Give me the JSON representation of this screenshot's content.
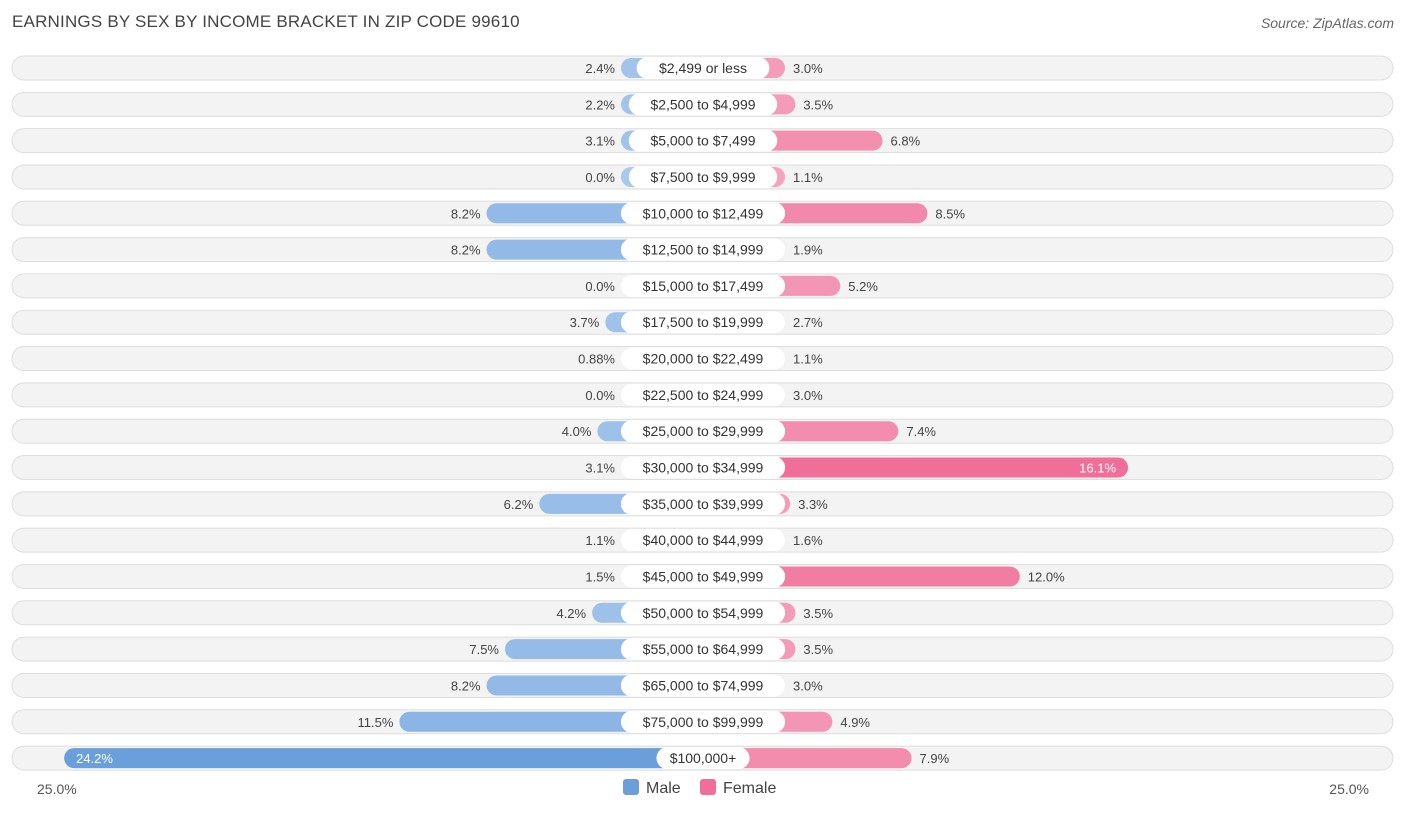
{
  "title": "EARNINGS BY SEX BY INCOME BRACKET IN ZIP CODE 99610",
  "source": "Source: ZipAtlas.com",
  "colors": {
    "male_light": "#a8c8ec",
    "male_dark": "#6a9fdb",
    "female_light": "#f5a8c2",
    "female_dark": "#f06e98"
  },
  "chart_data": {
    "type": "bar",
    "orientation": "horizontal-diverging",
    "categories": [
      "$2,499 or less",
      "$2,500 to $4,999",
      "$5,000 to $7,499",
      "$7,500 to $9,999",
      "$10,000 to $12,499",
      "$12,500 to $14,999",
      "$15,000 to $17,499",
      "$17,500 to $19,999",
      "$20,000 to $22,499",
      "$22,500 to $24,999",
      "$25,000 to $29,999",
      "$30,000 to $34,999",
      "$35,000 to $39,999",
      "$40,000 to $44,999",
      "$45,000 to $49,999",
      "$50,000 to $54,999",
      "$55,000 to $64,999",
      "$65,000 to $74,999",
      "$75,000 to $99,999",
      "$100,000+"
    ],
    "series": [
      {
        "name": "Male",
        "values": [
          2.4,
          2.2,
          3.1,
          0.0,
          8.2,
          8.2,
          0.0,
          3.7,
          0.88,
          0.0,
          4.0,
          3.1,
          6.2,
          1.1,
          1.5,
          4.2,
          7.5,
          8.2,
          11.5,
          24.2
        ],
        "labels": [
          "2.4%",
          "2.2%",
          "3.1%",
          "0.0%",
          "8.2%",
          "8.2%",
          "0.0%",
          "3.7%",
          "0.88%",
          "0.0%",
          "4.0%",
          "3.1%",
          "6.2%",
          "1.1%",
          "1.5%",
          "4.2%",
          "7.5%",
          "8.2%",
          "11.5%",
          "24.2%"
        ]
      },
      {
        "name": "Female",
        "values": [
          3.0,
          3.5,
          6.8,
          1.1,
          8.5,
          1.9,
          5.2,
          2.7,
          1.1,
          3.0,
          7.4,
          16.1,
          3.3,
          1.6,
          12.0,
          3.5,
          3.5,
          3.0,
          4.9,
          7.9
        ],
        "labels": [
          "3.0%",
          "3.5%",
          "6.8%",
          "1.1%",
          "8.5%",
          "1.9%",
          "5.2%",
          "2.7%",
          "1.1%",
          "3.0%",
          "7.4%",
          "16.1%",
          "3.3%",
          "1.6%",
          "12.0%",
          "3.5%",
          "3.5%",
          "3.0%",
          "4.9%",
          "7.9%"
        ]
      }
    ],
    "axis": {
      "min": 0,
      "max": 25.0,
      "left_label": "25.0%",
      "right_label": "25.0%"
    },
    "legend": {
      "placement": "bottom-center",
      "items": [
        "Male",
        "Female"
      ]
    },
    "unit": "%"
  }
}
